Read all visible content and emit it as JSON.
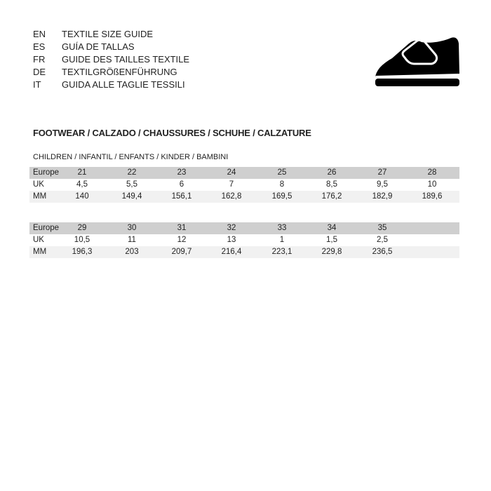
{
  "languages": [
    {
      "code": "EN",
      "text": "TEXTILE SIZE GUIDE"
    },
    {
      "code": "ES",
      "text": "GUÍA DE TALLAS"
    },
    {
      "code": "FR",
      "text": "GUIDE DES TAILLES TEXTILE"
    },
    {
      "code": "DE",
      "text": "TEXTILGRÖßENFÜHRUNG"
    },
    {
      "code": "IT",
      "text": "GUIDA ALLE TAGLIE TESSILI"
    }
  ],
  "icon": "shoe-icon",
  "section_title": "FOOTWEAR / CALZADO / CHAUSSURES / SCHUHE / CALZATURE",
  "sub_title": "CHILDREN / INFANTIL / ENFANTS / KINDER / BAMBINI",
  "tables": [
    {
      "rows": [
        {
          "label": "Europe",
          "values": [
            "21",
            "22",
            "23",
            "24",
            "25",
            "26",
            "27",
            "28"
          ]
        },
        {
          "label": "UK",
          "values": [
            "4,5",
            "5,5",
            "6",
            "7",
            "8",
            "8,5",
            "9,5",
            "10"
          ]
        },
        {
          "label": "MM",
          "values": [
            "140",
            "149,4",
            "156,1",
            "162,8",
            "169,5",
            "176,2",
            "182,9",
            "189,6"
          ]
        }
      ]
    },
    {
      "rows": [
        {
          "label": "Europe",
          "values": [
            "29",
            "30",
            "31",
            "32",
            "33",
            "34",
            "35"
          ]
        },
        {
          "label": "UK",
          "values": [
            "10,5",
            "11",
            "12",
            "13",
            "1",
            "1,5",
            "2,5"
          ]
        },
        {
          "label": "MM",
          "values": [
            "196,3",
            "203",
            "209,7",
            "216,4",
            "223,1",
            "229,8",
            "236,5"
          ]
        }
      ]
    }
  ]
}
